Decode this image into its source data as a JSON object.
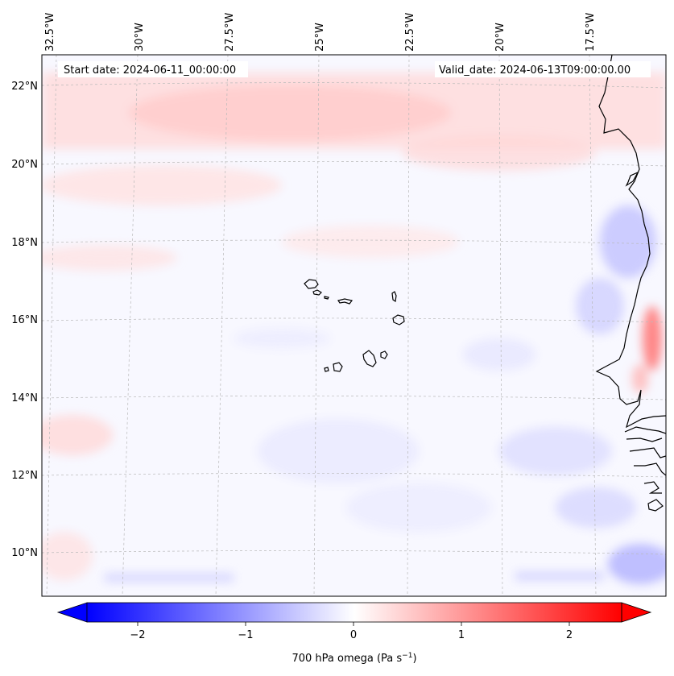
{
  "map": {
    "start_label": "Start date: 2024-06-11_00:00:00",
    "valid_label": "Valid_date: 2024-06-13T09:00:00.00",
    "lon_labels": [
      "32.5°W",
      "30°W",
      "27.5°W",
      "25°W",
      "22.5°W",
      "20°W",
      "17.5°W"
    ],
    "lat_labels": [
      "22°N",
      "20°N",
      "18°N",
      "16°N",
      "14°N",
      "12°N",
      "10°N"
    ],
    "extent": {
      "lon_min": -33.0,
      "lon_max": -15.6,
      "lat_min": 8.9,
      "lat_max": 22.7
    },
    "field": "700 hPa omega",
    "units": "Pa s⁻¹"
  },
  "colorbar": {
    "ticks": [
      "−2",
      "−1",
      "0",
      "1",
      "2"
    ],
    "label": "700 hPa omega (Pa s",
    "label_sup": "−1",
    "label_close": ")",
    "range": [
      -2.7,
      2.7
    ],
    "cmap": "bwr",
    "colors": {
      "negative": "#0000ff",
      "neutral": "#ffffff",
      "positive": "#ff0000"
    }
  }
}
